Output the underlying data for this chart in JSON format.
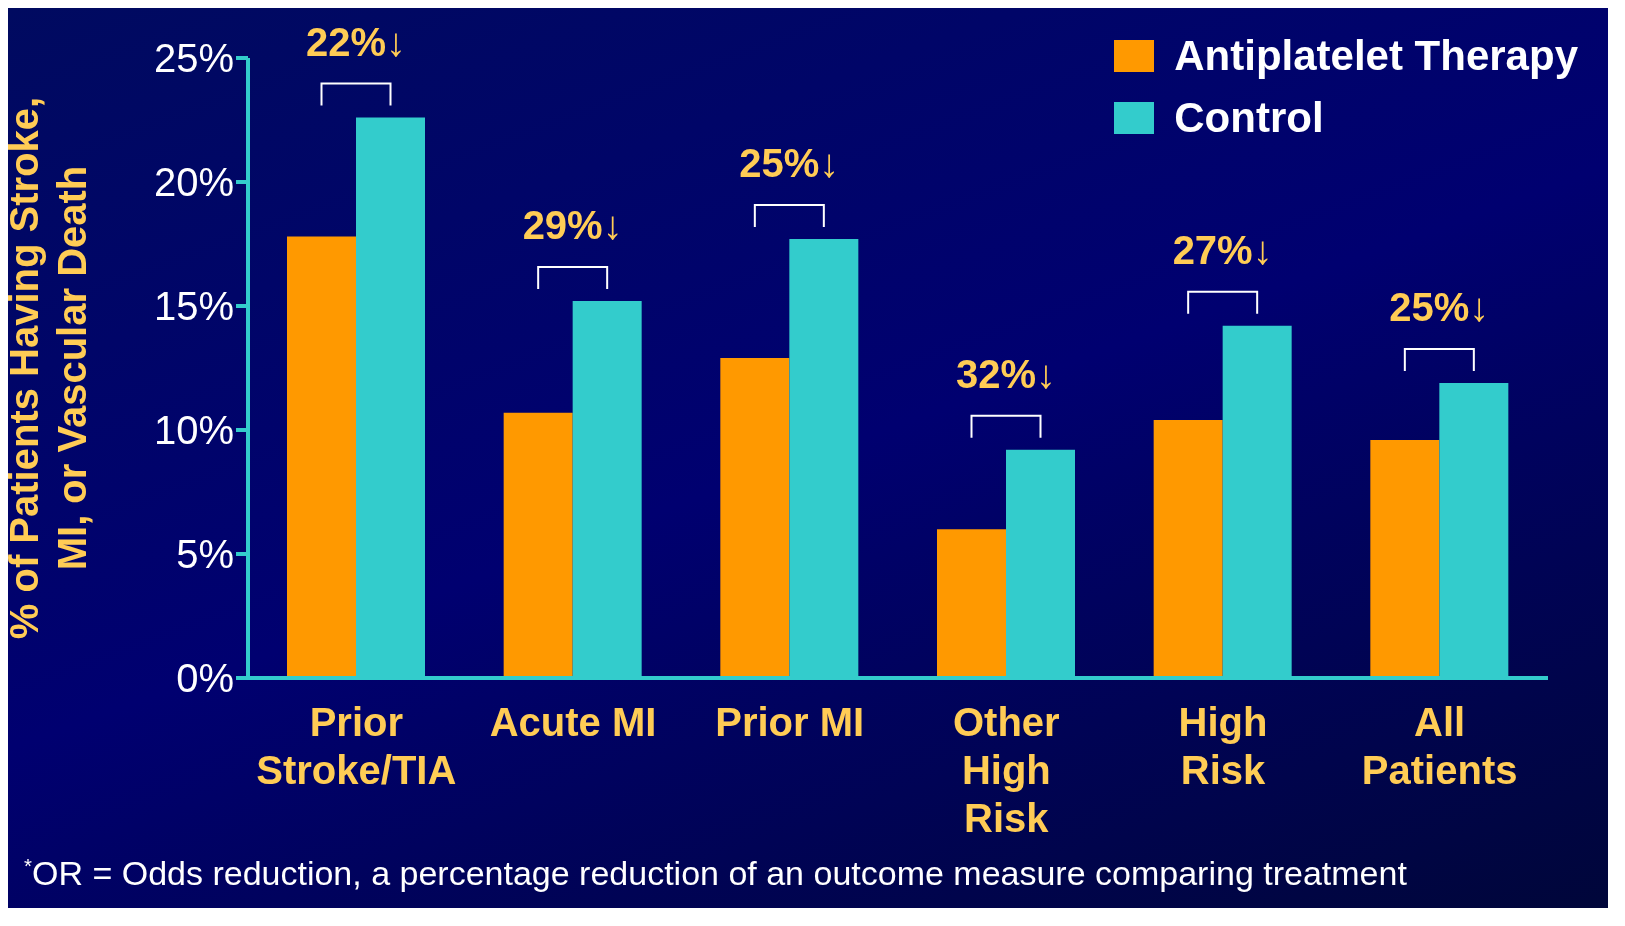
{
  "chart_data": {
    "type": "bar",
    "ylabel": "% of Patients Having Stroke, MI, or Vascular Death",
    "categories": [
      "Prior Stroke/TIA",
      "Acute MI",
      "Prior MI",
      "Other High Risk",
      "High Risk",
      "All Patients"
    ],
    "series": [
      {
        "name": "Antiplatelet Therapy",
        "color": "#ff9900",
        "values": [
          17.8,
          10.7,
          12.9,
          6.0,
          10.4,
          9.6
        ]
      },
      {
        "name": "Control",
        "color": "#33cccc",
        "values": [
          22.6,
          15.2,
          17.7,
          9.2,
          14.2,
          11.9
        ]
      }
    ],
    "ylim": [
      0,
      25
    ],
    "yticks": [
      {
        "value": 0,
        "label": "0%"
      },
      {
        "value": 5,
        "label": "5%"
      },
      {
        "value": 10,
        "label": "10%"
      },
      {
        "value": 15,
        "label": "15%"
      },
      {
        "value": 20,
        "label": "20%"
      },
      {
        "value": 25,
        "label": "25%"
      }
    ],
    "grid": false,
    "legend": "top right",
    "annotations": [
      "22%↓",
      "29%↓",
      "25%↓",
      "32%↓",
      "27%↓",
      "25%↓",
      "$^{*}$OR = Odds reduction, a percentage reduction of an outcome measure comparing treatment"
    ]
  }
}
